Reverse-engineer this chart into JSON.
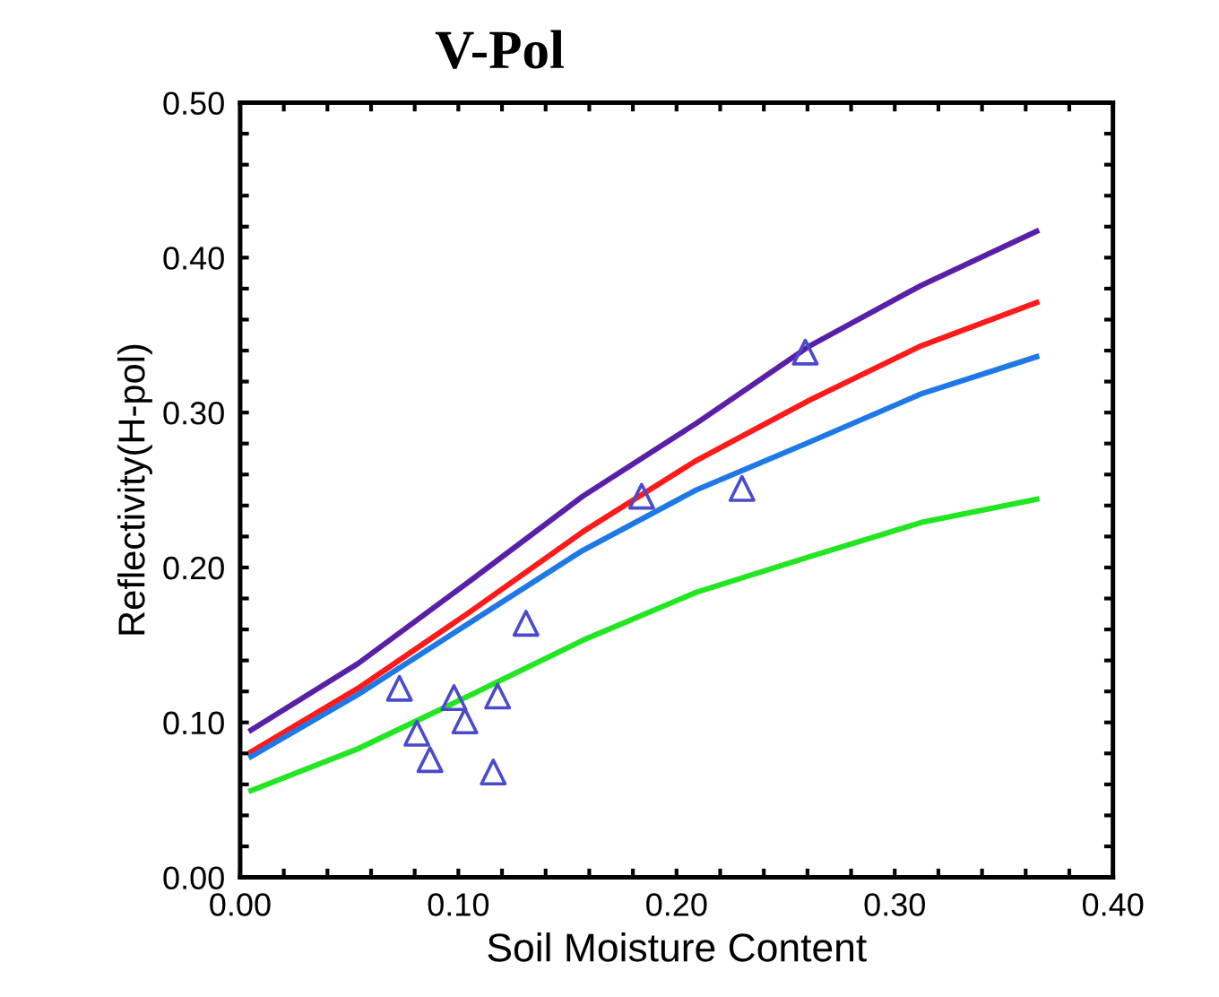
{
  "chart_data": {
    "type": "line",
    "title": "V-Pol",
    "xlabel": "Soil Moisture Content",
    "ylabel": "Reflectivity(H-pol)",
    "xlim": [
      0,
      0.4
    ],
    "ylim": [
      0,
      0.5
    ],
    "xticks": [
      {
        "value": 0,
        "label": "0.00"
      },
      {
        "value": 0.02,
        "label": null
      },
      {
        "value": 0.04,
        "label": null
      },
      {
        "value": 0.06,
        "label": null
      },
      {
        "value": 0.08,
        "label": null
      },
      {
        "value": 0.1,
        "label": "0.10"
      },
      {
        "value": 0.12,
        "label": null
      },
      {
        "value": 0.14,
        "label": null
      },
      {
        "value": 0.16,
        "label": null
      },
      {
        "value": 0.18,
        "label": null
      },
      {
        "value": 0.2,
        "label": "0.20"
      },
      {
        "value": 0.22,
        "label": null
      },
      {
        "value": 0.24,
        "label": null
      },
      {
        "value": 0.26,
        "label": null
      },
      {
        "value": 0.28,
        "label": null
      },
      {
        "value": 0.3,
        "label": "0.30"
      },
      {
        "value": 0.32,
        "label": null
      },
      {
        "value": 0.34,
        "label": null
      },
      {
        "value": 0.36,
        "label": null
      },
      {
        "value": 0.38,
        "label": null
      },
      {
        "value": 0.4,
        "label": "0.40"
      }
    ],
    "yticks": [
      {
        "value": 0,
        "label": "0.00"
      },
      {
        "value": 0.02,
        "label": null
      },
      {
        "value": 0.04,
        "label": null
      },
      {
        "value": 0.06,
        "label": null
      },
      {
        "value": 0.08,
        "label": null
      },
      {
        "value": 0.1,
        "label": "0.10"
      },
      {
        "value": 0.12,
        "label": null
      },
      {
        "value": 0.14,
        "label": null
      },
      {
        "value": 0.16,
        "label": null
      },
      {
        "value": 0.18,
        "label": null
      },
      {
        "value": 0.2,
        "label": "0.20"
      },
      {
        "value": 0.22,
        "label": null
      },
      {
        "value": 0.24,
        "label": null
      },
      {
        "value": 0.26,
        "label": null
      },
      {
        "value": 0.28,
        "label": null
      },
      {
        "value": 0.3,
        "label": "0.30"
      },
      {
        "value": 0.32,
        "label": null
      },
      {
        "value": 0.34,
        "label": null
      },
      {
        "value": 0.36,
        "label": null
      },
      {
        "value": 0.38,
        "label": null
      },
      {
        "value": 0.4,
        "label": "0.40"
      },
      {
        "value": 0.42,
        "label": null
      },
      {
        "value": 0.44,
        "label": null
      },
      {
        "value": 0.46,
        "label": null
      },
      {
        "value": 0.48,
        "label": null
      },
      {
        "value": 0.5,
        "label": "0.50"
      }
    ],
    "grid": false,
    "legend": false,
    "series": [
      {
        "marker": "none",
        "color": "#5a1fa8",
        "x": [
          0.005,
          0.054,
          0.106,
          0.157,
          0.209,
          0.261,
          0.312,
          0.365
        ],
        "values": [
          0.095,
          0.138,
          0.192,
          0.246,
          0.293,
          0.343,
          0.382,
          0.417
        ]
      },
      {
        "marker": "none",
        "color": "#ff1a1a",
        "x": [
          0.005,
          0.054,
          0.106,
          0.157,
          0.209,
          0.261,
          0.312,
          0.365
        ],
        "values": [
          0.081,
          0.122,
          0.172,
          0.223,
          0.269,
          0.308,
          0.343,
          0.371
        ]
      },
      {
        "marker": "none",
        "color": "#1e78e6",
        "x": [
          0.005,
          0.054,
          0.106,
          0.157,
          0.209,
          0.261,
          0.312,
          0.365
        ],
        "values": [
          0.078,
          0.118,
          0.165,
          0.211,
          0.25,
          0.281,
          0.312,
          0.336
        ]
      },
      {
        "marker": "none",
        "color": "#22e622",
        "x": [
          0.005,
          0.054,
          0.106,
          0.157,
          0.209,
          0.261,
          0.312,
          0.365
        ],
        "values": [
          0.056,
          0.083,
          0.118,
          0.153,
          0.184,
          0.207,
          0.229,
          0.244
        ]
      },
      {
        "type": "scatter",
        "marker": "triangle",
        "color": "#4a4acc",
        "x": [
          0.073,
          0.081,
          0.087,
          0.098,
          0.103,
          0.118,
          0.116,
          0.131,
          0.184,
          0.23,
          0.259
        ],
        "values": [
          0.122,
          0.093,
          0.076,
          0.116,
          0.101,
          0.117,
          0.068,
          0.164,
          0.246,
          0.251,
          0.339
        ]
      }
    ]
  }
}
